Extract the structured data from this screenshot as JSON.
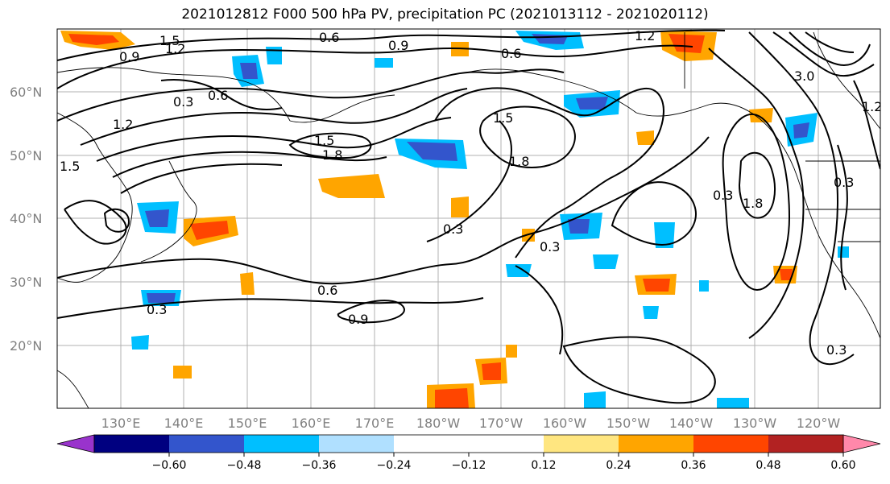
{
  "title": "2021012812 F000 500 hPa PV, precipitation PC (2021013112 - 2021020112)",
  "lat_labels": [
    "60°N",
    "50°N",
    "40°N",
    "30°N",
    "20°N"
  ],
  "lon_labels": [
    "130°E",
    "140°E",
    "150°E",
    "160°E",
    "170°E",
    "180°W",
    "170°W",
    "160°W",
    "150°W",
    "140°W",
    "130°W",
    "120°W"
  ],
  "colorbar": {
    "colors": [
      "#9933cc",
      "#000080",
      "#3355cc",
      "#00bfff",
      "#b0e0ff",
      "#ffffff",
      "#ffffff",
      "#ffe680",
      "#ffa500",
      "#ff4500",
      "#b22222",
      "#ff88aa"
    ],
    "tick_labels": [
      "−0.60",
      "−0.48",
      "−0.36",
      "−0.24",
      "−0.12",
      "0.12",
      "0.24",
      "0.36",
      "0.48",
      "0.60"
    ]
  },
  "contour_labels": [
    "1.5",
    "0.9",
    "1.2",
    "0.6",
    "0.3",
    "0.9",
    "0.6",
    "1.2",
    "0.6",
    "1.2",
    "0.3",
    "1.5",
    "1.5",
    "1.8",
    "1.8",
    "0.3",
    "0.3",
    "0.6",
    "0.9",
    "0.3",
    "1.8",
    "0.3",
    "3.0",
    "1.2",
    "0.3",
    "1.5"
  ]
}
